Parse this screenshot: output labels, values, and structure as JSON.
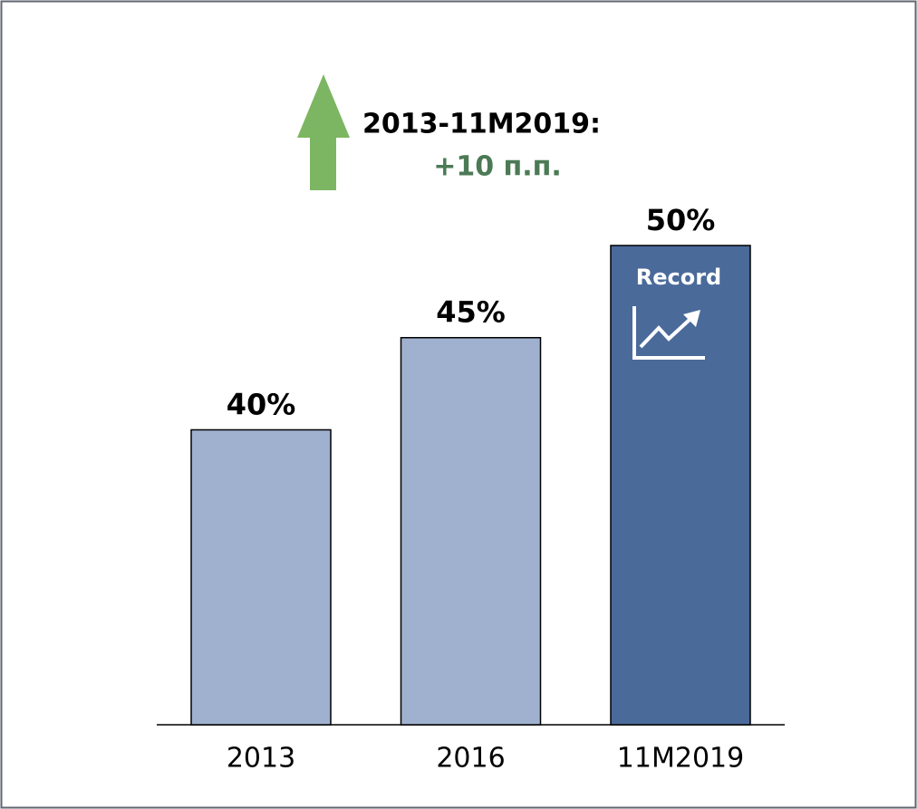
{
  "chart_data": {
    "type": "bar",
    "categories": [
      "2013",
      "2016",
      "11M2019"
    ],
    "values": [
      40,
      45,
      50
    ],
    "value_labels": [
      "40%",
      "45%",
      "50%"
    ],
    "colors": [
      "#9fb1cf",
      "#9fb1cf",
      "#4a6a9a"
    ],
    "ylim": [
      24,
      50
    ],
    "annotations": [
      "2013-11M2019:",
      "+10 п.п.",
      "Record"
    ]
  }
}
